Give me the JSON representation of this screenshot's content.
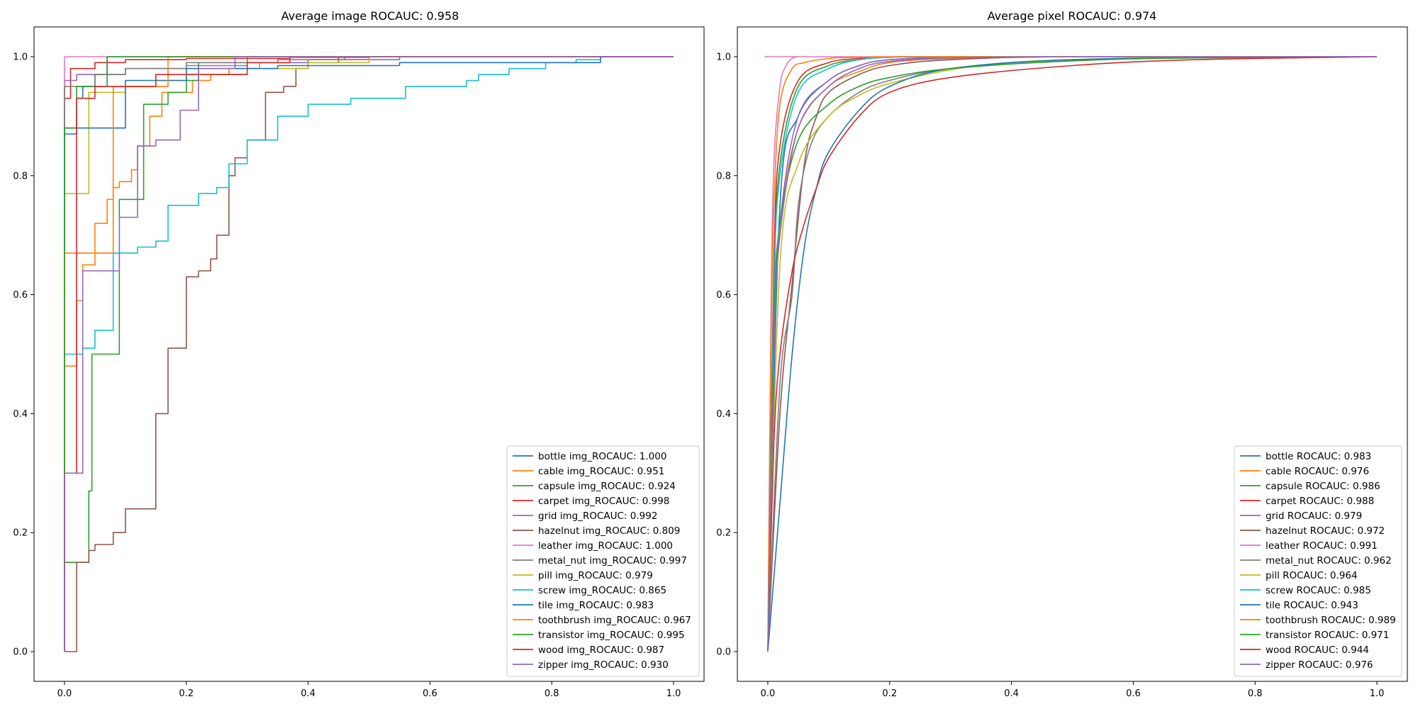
{
  "palette": [
    "#1f77b4",
    "#ff7f0e",
    "#2ca02c",
    "#d62728",
    "#9467bd",
    "#8c564b",
    "#e377c2",
    "#7f7f7f",
    "#bcbd22",
    "#17becf",
    "#1f77b4",
    "#ff7f0e",
    "#2ca02c",
    "#d62728",
    "#9467bd"
  ],
  "chart_data": [
    {
      "type": "line",
      "subtype": "step",
      "title": "Average image ROCAUC: 0.958",
      "xlabel": "",
      "ylabel": "",
      "xlim": [
        -0.05,
        1.05
      ],
      "ylim": [
        -0.05,
        1.05
      ],
      "xticks": [
        "0.0",
        "0.2",
        "0.4",
        "0.6",
        "0.8",
        "1.0"
      ],
      "yticks": [
        "0.0",
        "0.2",
        "0.4",
        "0.6",
        "0.8",
        "1.0"
      ],
      "legend_position": "lower-right",
      "series": [
        {
          "name": "bottle img_ROCAUC: 1.000",
          "x": [
            0,
            0,
            0.02,
            0.02,
            0.03,
            0.03,
            0.05,
            0.05,
            0.07,
            0.07,
            1.0
          ],
          "y": [
            0,
            0.87,
            0.87,
            0.93,
            0.93,
            0.95,
            0.95,
            0.97,
            0.97,
            1.0,
            1.0
          ]
        },
        {
          "name": "cable img_ROCAUC: 0.951",
          "x": [
            0,
            0,
            0.02,
            0.02,
            0.03,
            0.03,
            0.05,
            0.05,
            0.07,
            0.07,
            0.08,
            0.08,
            0.09,
            0.09,
            0.11,
            0.11,
            0.12,
            0.12,
            0.14,
            0.14,
            0.16,
            0.16,
            0.21,
            0.21,
            0.24,
            0.24,
            0.27,
            0.27,
            0.32,
            0.32,
            0.4,
            0.4,
            0.5,
            0.5,
            1.0
          ],
          "y": [
            0,
            0.48,
            0.48,
            0.59,
            0.59,
            0.65,
            0.65,
            0.72,
            0.72,
            0.76,
            0.76,
            0.78,
            0.78,
            0.79,
            0.79,
            0.81,
            0.81,
            0.85,
            0.85,
            0.9,
            0.9,
            0.94,
            0.94,
            0.96,
            0.96,
            0.97,
            0.97,
            0.98,
            0.98,
            0.99,
            0.99,
            0.995,
            0.995,
            1.0,
            1.0
          ]
        },
        {
          "name": "capsule img_ROCAUC: 0.924",
          "x": [
            0,
            0,
            0.04,
            0.04,
            0.045,
            0.045,
            0.09,
            0.09,
            0.13,
            0.13,
            0.17,
            0.17,
            0.2,
            0.2,
            0.22,
            0.22,
            0.3,
            0.3,
            1.0
          ],
          "y": [
            0,
            0.15,
            0.15,
            0.27,
            0.27,
            0.5,
            0.5,
            0.76,
            0.76,
            0.92,
            0.92,
            0.94,
            0.94,
            0.96,
            0.96,
            0.99,
            0.99,
            1.0,
            1.0
          ]
        },
        {
          "name": "carpet img_ROCAUC: 0.998",
          "x": [
            0,
            0,
            0.01,
            0.01,
            0.05,
            0.05,
            0.1,
            0.1,
            0.2,
            0.2,
            0.37,
            0.37,
            0.5,
            0.5,
            1.0
          ],
          "y": [
            0,
            0.93,
            0.93,
            0.98,
            0.98,
            0.99,
            0.99,
            0.995,
            0.995,
            0.997,
            0.997,
            0.999,
            0.999,
            1.0,
            1.0
          ]
        },
        {
          "name": "grid img_ROCAUC: 0.992",
          "x": [
            0,
            0,
            0.02,
            0.02,
            0.1,
            0.1,
            0.2,
            0.2,
            0.3,
            0.3,
            0.4,
            0.4,
            0.55,
            0.55,
            1.0
          ],
          "y": [
            0,
            0.96,
            0.96,
            0.97,
            0.97,
            0.98,
            0.98,
            0.985,
            0.985,
            0.99,
            0.99,
            0.995,
            0.995,
            1.0,
            1.0
          ]
        },
        {
          "name": "hazelnut img_ROCAUC: 0.809",
          "x": [
            0,
            0,
            0.02,
            0.02,
            0.04,
            0.04,
            0.05,
            0.05,
            0.08,
            0.08,
            0.1,
            0.1,
            0.15,
            0.15,
            0.17,
            0.17,
            0.2,
            0.2,
            0.22,
            0.22,
            0.24,
            0.24,
            0.25,
            0.25,
            0.27,
            0.27,
            0.28,
            0.28,
            0.3,
            0.3,
            0.33,
            0.33,
            0.36,
            0.36,
            0.38,
            0.38,
            0.4,
            0.4,
            0.45,
            0.45,
            1.0
          ],
          "y": [
            0,
            0.0,
            0.0,
            0.15,
            0.15,
            0.17,
            0.17,
            0.18,
            0.18,
            0.2,
            0.2,
            0.24,
            0.24,
            0.4,
            0.4,
            0.51,
            0.51,
            0.63,
            0.63,
            0.64,
            0.64,
            0.66,
            0.66,
            0.7,
            0.7,
            0.8,
            0.8,
            0.83,
            0.83,
            0.86,
            0.86,
            0.94,
            0.94,
            0.95,
            0.95,
            0.98,
            0.98,
            0.99,
            0.99,
            1.0,
            1.0
          ]
        },
        {
          "name": "leather img_ROCAUC: 1.000",
          "x": [
            0,
            0,
            1.0
          ],
          "y": [
            0,
            1.0,
            1.0
          ]
        },
        {
          "name": "metal_nut img_ROCAUC: 0.997",
          "x": [
            0,
            0,
            0.05,
            0.05,
            0.1,
            0.1,
            0.2,
            0.2,
            0.35,
            0.35,
            0.46,
            0.46,
            1.0
          ],
          "y": [
            0,
            0.95,
            0.95,
            0.97,
            0.97,
            0.98,
            0.98,
            0.99,
            0.99,
            0.995,
            0.995,
            1.0,
            1.0
          ]
        },
        {
          "name": "pill img_ROCAUC: 0.979",
          "x": [
            0,
            0,
            0.04,
            0.04,
            0.1,
            0.1,
            0.15,
            0.15,
            0.2,
            0.2,
            0.3,
            0.3,
            0.4,
            0.4,
            0.5,
            0.5,
            1.0
          ],
          "y": [
            0,
            0.77,
            0.77,
            0.94,
            0.94,
            0.95,
            0.95,
            0.96,
            0.96,
            0.97,
            0.97,
            0.98,
            0.98,
            0.99,
            0.99,
            1.0,
            1.0
          ]
        },
        {
          "name": "screw img_ROCAUC: 0.865",
          "x": [
            0,
            0,
            0.03,
            0.03,
            0.05,
            0.05,
            0.08,
            0.08,
            0.12,
            0.12,
            0.15,
            0.15,
            0.17,
            0.17,
            0.22,
            0.22,
            0.25,
            0.25,
            0.27,
            0.27,
            0.3,
            0.3,
            0.35,
            0.35,
            0.4,
            0.4,
            0.47,
            0.47,
            0.56,
            0.56,
            0.66,
            0.66,
            0.68,
            0.68,
            0.73,
            0.73,
            0.79,
            0.79,
            0.84,
            0.84,
            0.88,
            0.88,
            1.0
          ],
          "y": [
            0,
            0.5,
            0.5,
            0.51,
            0.51,
            0.54,
            0.54,
            0.67,
            0.67,
            0.68,
            0.68,
            0.69,
            0.69,
            0.75,
            0.75,
            0.77,
            0.77,
            0.78,
            0.78,
            0.82,
            0.82,
            0.86,
            0.86,
            0.9,
            0.9,
            0.92,
            0.92,
            0.93,
            0.93,
            0.95,
            0.95,
            0.96,
            0.96,
            0.97,
            0.97,
            0.98,
            0.98,
            0.99,
            0.99,
            0.995,
            0.995,
            1.0,
            1.0
          ]
        },
        {
          "name": "tile img_ROCAUC: 0.983",
          "x": [
            0,
            0,
            0.1,
            0.1,
            0.2,
            0.2,
            0.35,
            0.35,
            0.55,
            0.55,
            0.88,
            0.88,
            1.0
          ],
          "y": [
            0,
            0.88,
            0.88,
            0.96,
            0.96,
            0.98,
            0.98,
            0.985,
            0.985,
            0.99,
            0.99,
            1.0,
            1.0
          ]
        },
        {
          "name": "toothbrush img_ROCAUC: 0.967",
          "x": [
            0,
            0,
            0.08,
            0.08,
            0.17,
            0.17,
            1.0
          ],
          "y": [
            0,
            0.67,
            0.67,
            0.95,
            0.95,
            1.0,
            1.0
          ]
        },
        {
          "name": "transistor img_ROCAUC: 0.995",
          "x": [
            0,
            0,
            0.02,
            0.02,
            0.07,
            0.07,
            1.0
          ],
          "y": [
            0,
            0.88,
            0.88,
            0.95,
            0.95,
            1.0,
            1.0
          ]
        },
        {
          "name": "wood img_ROCAUC: 0.987",
          "x": [
            0,
            0,
            0.02,
            0.02,
            0.05,
            0.05,
            0.15,
            0.15,
            0.3,
            0.3,
            0.37,
            0.37,
            1.0
          ],
          "y": [
            0,
            0.3,
            0.3,
            0.93,
            0.93,
            0.95,
            0.95,
            0.97,
            0.97,
            0.99,
            0.99,
            1.0,
            1.0
          ]
        },
        {
          "name": "zipper img_ROCAUC: 0.930",
          "x": [
            0,
            0,
            0.03,
            0.03,
            0.09,
            0.09,
            0.12,
            0.12,
            0.15,
            0.15,
            0.19,
            0.19,
            0.22,
            0.22,
            0.28,
            0.28,
            1.0
          ],
          "y": [
            0,
            0.3,
            0.3,
            0.64,
            0.64,
            0.73,
            0.73,
            0.85,
            0.85,
            0.86,
            0.86,
            0.91,
            0.91,
            0.98,
            0.98,
            1.0,
            1.0
          ]
        }
      ]
    },
    {
      "type": "line",
      "subtype": "smooth",
      "title": "Average pixel ROCAUC: 0.974",
      "xlabel": "",
      "ylabel": "",
      "xlim": [
        -0.05,
        1.05
      ],
      "ylim": [
        -0.05,
        1.05
      ],
      "xticks": [
        "0.0",
        "0.2",
        "0.4",
        "0.6",
        "0.8",
        "1.0"
      ],
      "yticks": [
        "0.0",
        "0.2",
        "0.4",
        "0.6",
        "0.8",
        "1.0"
      ],
      "legend_position": "lower-right",
      "series": [
        {
          "name": "bottle ROCAUC: 0.983",
          "x": [
            0,
            0.02,
            0.05,
            0.1,
            0.15,
            0.2,
            0.3,
            0.5,
            1.0
          ],
          "y": [
            0,
            0.75,
            0.9,
            0.96,
            0.985,
            0.995,
            0.999,
            1.0,
            1.0
          ]
        },
        {
          "name": "cable ROCAUC: 0.976",
          "x": [
            0,
            0.01,
            0.02,
            0.05,
            0.1,
            0.15,
            0.2,
            0.3,
            0.5,
            1.0
          ],
          "y": [
            0,
            0.55,
            0.72,
            0.88,
            0.95,
            0.975,
            0.99,
            0.997,
            1.0,
            1.0
          ]
        },
        {
          "name": "capsule ROCAUC: 0.986",
          "x": [
            0,
            0.01,
            0.02,
            0.05,
            0.1,
            0.15,
            0.2,
            0.3,
            1.0
          ],
          "y": [
            0,
            0.62,
            0.82,
            0.95,
            0.985,
            0.995,
            0.999,
            1.0,
            1.0
          ]
        },
        {
          "name": "carpet ROCAUC: 0.988",
          "x": [
            0,
            0.01,
            0.02,
            0.05,
            0.1,
            0.15,
            0.2,
            0.3,
            1.0
          ],
          "y": [
            0,
            0.65,
            0.85,
            0.96,
            0.99,
            0.997,
            0.999,
            1.0,
            1.0
          ]
        },
        {
          "name": "grid ROCAUC: 0.979",
          "x": [
            0,
            0.01,
            0.02,
            0.05,
            0.1,
            0.15,
            0.2,
            0.3,
            0.5,
            1.0
          ],
          "y": [
            0,
            0.5,
            0.72,
            0.9,
            0.96,
            0.985,
            0.995,
            0.999,
            1.0,
            1.0
          ]
        },
        {
          "name": "hazelnut ROCAUC: 0.972",
          "x": [
            0,
            0.02,
            0.04,
            0.06,
            0.08,
            0.1,
            0.15,
            0.2,
            0.3,
            0.5,
            1.0
          ],
          "y": [
            0,
            0.4,
            0.62,
            0.82,
            0.9,
            0.94,
            0.97,
            0.985,
            0.995,
            1.0,
            1.0
          ]
        },
        {
          "name": "leather ROCAUC: 0.991",
          "x": [
            0,
            0.005,
            0.01,
            0.02,
            0.03,
            0.04,
            0.05,
            0.07,
            1.0
          ],
          "y": [
            0,
            0.55,
            0.82,
            0.95,
            0.985,
            0.997,
            1.0,
            1.0,
            1.0
          ]
        },
        {
          "name": "metal_nut ROCAUC: 0.962",
          "x": [
            0,
            0.02,
            0.04,
            0.05,
            0.07,
            0.1,
            0.15,
            0.2,
            0.3,
            0.5,
            1.0
          ],
          "y": [
            0,
            0.45,
            0.6,
            0.75,
            0.85,
            0.9,
            0.94,
            0.96,
            0.98,
            0.995,
            1.0
          ]
        },
        {
          "name": "pill ROCAUC: 0.964",
          "x": [
            0,
            0.02,
            0.05,
            0.1,
            0.15,
            0.2,
            0.3,
            0.4,
            0.5,
            0.7,
            1.0
          ],
          "y": [
            0,
            0.65,
            0.82,
            0.9,
            0.935,
            0.955,
            0.978,
            0.99,
            0.995,
            0.999,
            1.0
          ]
        },
        {
          "name": "screw ROCAUC: 0.985",
          "x": [
            0,
            0.01,
            0.02,
            0.05,
            0.1,
            0.15,
            0.2,
            0.3,
            1.0
          ],
          "y": [
            0,
            0.6,
            0.8,
            0.94,
            0.98,
            0.995,
            0.999,
            1.0,
            1.0
          ]
        },
        {
          "name": "tile ROCAUC: 0.943",
          "x": [
            0,
            0.02,
            0.04,
            0.06,
            0.08,
            0.1,
            0.15,
            0.2,
            0.3,
            0.5,
            0.8,
            1.0
          ],
          "y": [
            0,
            0.25,
            0.5,
            0.68,
            0.78,
            0.84,
            0.91,
            0.95,
            0.98,
            0.995,
            0.999,
            1.0
          ]
        },
        {
          "name": "toothbrush ROCAUC: 0.989",
          "x": [
            0,
            0.005,
            0.01,
            0.02,
            0.04,
            0.06,
            0.1,
            0.15,
            0.3,
            1.0
          ],
          "y": [
            0,
            0.5,
            0.75,
            0.92,
            0.98,
            0.99,
            0.997,
            0.999,
            1.0,
            1.0
          ]
        },
        {
          "name": "transistor ROCAUC: 0.971",
          "x": [
            0,
            0.01,
            0.02,
            0.05,
            0.1,
            0.15,
            0.2,
            0.3,
            0.5,
            0.7,
            1.0
          ],
          "y": [
            0,
            0.55,
            0.72,
            0.86,
            0.92,
            0.95,
            0.965,
            0.98,
            0.993,
            0.998,
            1.0
          ]
        },
        {
          "name": "wood ROCAUC: 0.944",
          "x": [
            0,
            0.01,
            0.02,
            0.04,
            0.06,
            0.08,
            0.1,
            0.15,
            0.2,
            0.3,
            0.5,
            0.7,
            1.0
          ],
          "y": [
            0,
            0.35,
            0.5,
            0.64,
            0.72,
            0.78,
            0.83,
            0.9,
            0.94,
            0.965,
            0.985,
            0.995,
            1.0
          ]
        },
        {
          "name": "zipper ROCAUC: 0.976",
          "x": [
            0,
            0.01,
            0.02,
            0.05,
            0.1,
            0.15,
            0.2,
            0.3,
            0.5,
            1.0
          ],
          "y": [
            0,
            0.5,
            0.7,
            0.88,
            0.95,
            0.98,
            0.992,
            0.998,
            1.0,
            1.0
          ]
        }
      ]
    }
  ]
}
